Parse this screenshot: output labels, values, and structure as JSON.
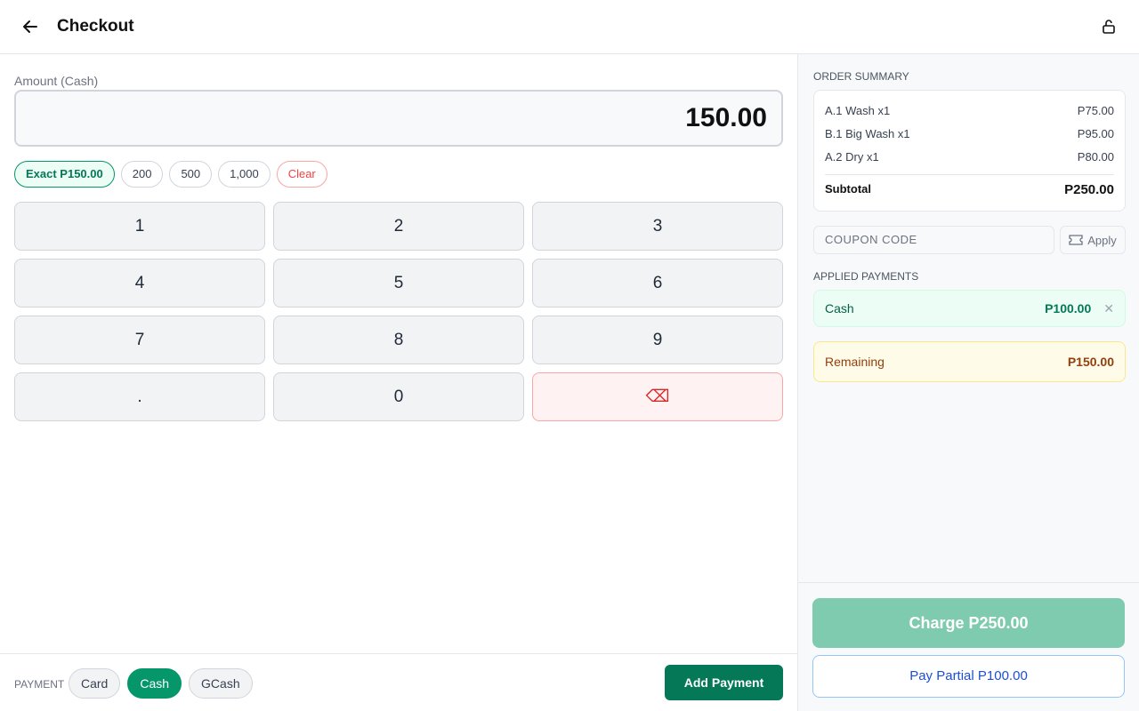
{
  "header": {
    "title": "Checkout",
    "back_icon": "arrow-left-icon",
    "lock_icon": "lock-open-icon"
  },
  "amount": {
    "label": "Amount (Cash)",
    "value": "150.00"
  },
  "quick": {
    "exact": "Exact P150.00",
    "b200": "200",
    "b500": "500",
    "b1000": "1,000",
    "clear": "Clear"
  },
  "keypad": [
    "1",
    "2",
    "3",
    "4",
    "5",
    "6",
    "7",
    "8",
    "9",
    ".",
    "0",
    "⌫"
  ],
  "footer": {
    "payment_label": "PAYMENT",
    "methods": [
      "Card",
      "Cash",
      "GCash"
    ],
    "active_method": "Cash",
    "add_payment": "Add Payment"
  },
  "summary": {
    "title": "ORDER SUMMARY",
    "items": [
      {
        "name": "A.1 Wash x1",
        "price": "P75.00"
      },
      {
        "name": "B.1 Big Wash x1",
        "price": "P95.00"
      },
      {
        "name": "A.2 Dry x1",
        "price": "P80.00"
      }
    ],
    "subtotal_label": "Subtotal",
    "subtotal": "P250.00"
  },
  "coupon": {
    "placeholder": "COUPON CODE",
    "apply": "Apply"
  },
  "applied": {
    "title": "APPLIED PAYMENTS",
    "items": [
      {
        "method": "Cash",
        "amount": "P100.00"
      }
    ]
  },
  "remaining": {
    "label": "Remaining",
    "amount": "P150.00"
  },
  "actions": {
    "charge": "Charge P250.00",
    "partial": "Pay Partial P100.00"
  },
  "colors": {
    "primary": "#047857",
    "accent": "#059669",
    "danger": "#ef4444",
    "info": "#1d4ed8"
  }
}
